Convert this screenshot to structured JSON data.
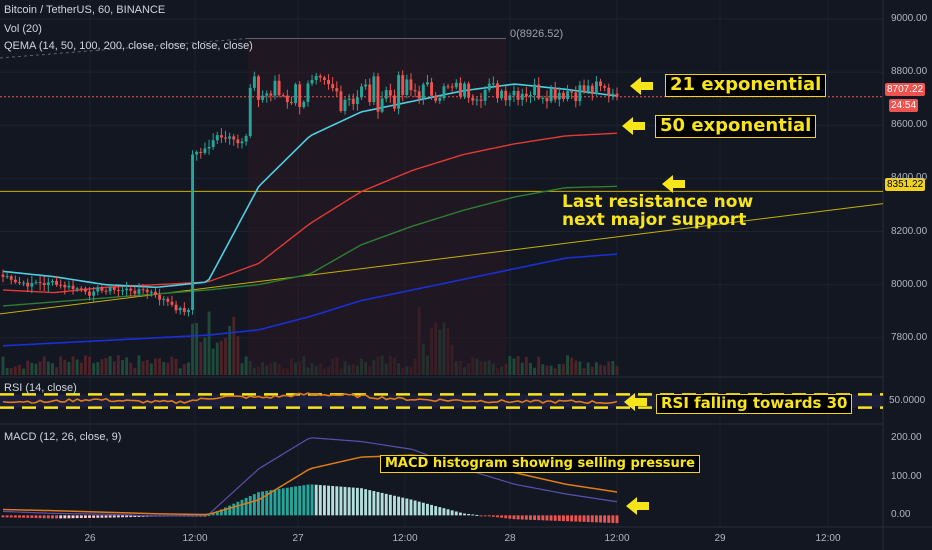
{
  "header": {
    "symbol": "Bitcoin / TetherUS, 60, BINANCE",
    "volume": "Vol (20)",
    "qema": "QEMA (14, 50, 100, 200, close, close, close, close)",
    "rsi": "RSI (14, close)",
    "macd": "MACD (12, 26, close, 9)"
  },
  "annotations": {
    "ema21": "21 exponential",
    "ema50": "50 exponential",
    "resistance": [
      "Last resistance now",
      "next major support"
    ],
    "rsi": "RSI falling towards 30",
    "macd": "MACD histogram showing selling pressure",
    "measure": "0(8926.52)"
  },
  "price_scale": {
    "ticks": [
      "9000.00",
      "8800.00",
      "8600.00",
      "8400.00",
      "8200.00",
      "8000.00",
      "7800.00"
    ],
    "last_price": "8707.22",
    "countdown": "24:54",
    "support_level": "8351.22"
  },
  "rsi_scale": {
    "ticks": [
      "50.0000"
    ]
  },
  "macd_scale": {
    "ticks": [
      "200.00",
      "100.00",
      "0.00"
    ]
  },
  "time_axis": {
    "labels": [
      "26",
      "12:00",
      "27",
      "12:00",
      "28",
      "12:00",
      "29",
      "12:00"
    ]
  },
  "colors": {
    "background": "#131722",
    "up": "#26a69a",
    "down": "#ef5350",
    "ema14": "#4dd0e1",
    "ema50": "#e53935",
    "ema100": "#2e7d32",
    "ema200": "#1a2fd6",
    "trendline": "#c8b000",
    "annotation": "#f7e51a",
    "rsi": "#e07b18",
    "macd": "#5b4fae",
    "signal": "#e07b18"
  },
  "chart_data": {
    "type": "candlestick",
    "symbol": "BTCUSDT",
    "interval": "60",
    "price_range": [
      7660,
      9060
    ],
    "last_price": 8707.22,
    "support_level": 8351.22,
    "measure_high": 8926.52,
    "ohlc_summary": {
      "pre_breakout_range": [
        7880,
        8060
      ],
      "breakout_hour_close": 8490,
      "day27_high": 8890,
      "day28_range": [
        8640,
        8790
      ]
    },
    "ema_14_anchors": [
      8050,
      8030,
      8000,
      7990,
      8010,
      8370,
      8560,
      8650,
      8690,
      8730,
      8755,
      8735,
      8710
    ],
    "ema_50_anchors": [
      7980,
      7970,
      7990,
      8000,
      8010,
      8080,
      8230,
      8350,
      8430,
      8490,
      8530,
      8560,
      8570
    ],
    "ema_100_anchors": [
      7920,
      7935,
      7950,
      7965,
      7980,
      8000,
      8040,
      8150,
      8220,
      8280,
      8330,
      8365,
      8370
    ],
    "ema_200_anchors": [
      7770,
      7780,
      7790,
      7800,
      7810,
      7830,
      7880,
      7940,
      7980,
      8020,
      8060,
      8100,
      8115
    ],
    "trendline": [
      [
        0,
        7890
      ],
      [
        1,
        8305
      ]
    ],
    "rsi_levels": {
      "upper": 65,
      "lower": 35,
      "ticks": [
        50
      ]
    },
    "rsi_anchors": [
      50,
      48,
      54,
      49,
      47,
      60,
      58,
      66,
      62,
      55,
      52,
      50,
      48,
      49,
      46
    ],
    "macd_range": [
      -30,
      230
    ],
    "macd_ticks": [
      200,
      100,
      0
    ],
    "macd_line_anchors": [
      10,
      5,
      3,
      -2,
      0,
      120,
      200,
      190,
      170,
      120,
      80,
      55,
      35
    ],
    "signal_line_anchors": [
      15,
      12,
      8,
      4,
      2,
      40,
      120,
      150,
      155,
      140,
      110,
      80,
      60
    ],
    "histogram_anchors": [
      -5,
      -8,
      -6,
      -3,
      -1,
      60,
      80,
      70,
      40,
      5,
      -10,
      -15,
      -20
    ]
  }
}
